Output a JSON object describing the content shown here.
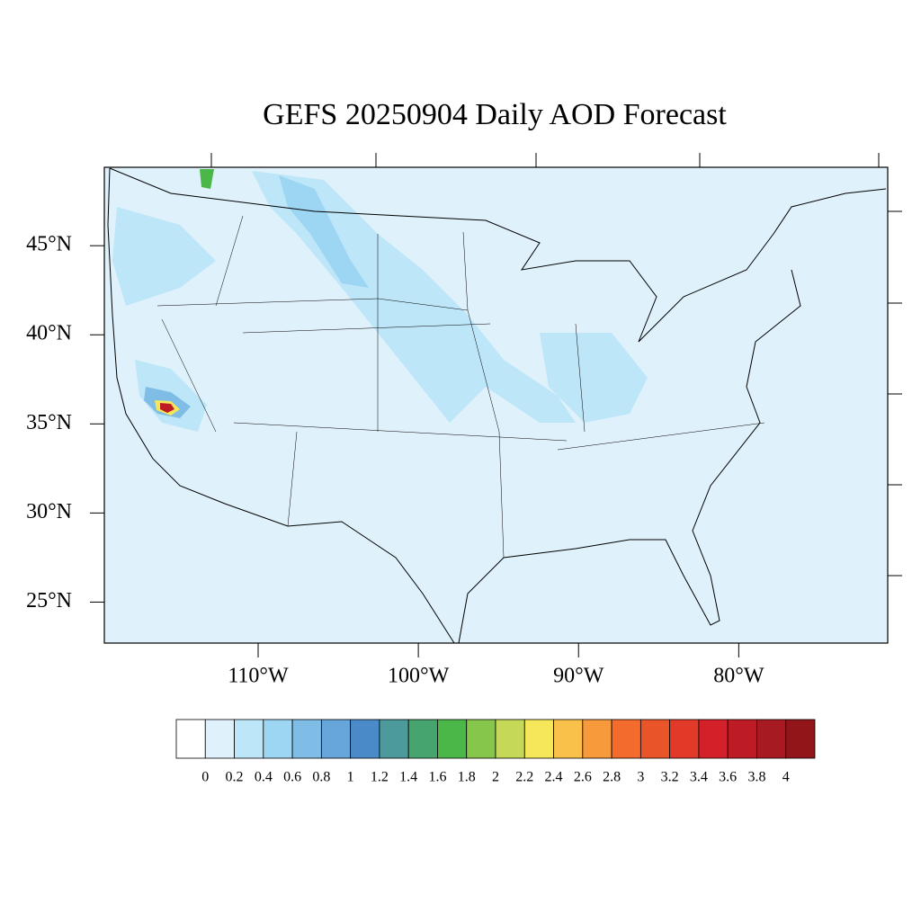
{
  "chart_data": {
    "type": "map",
    "title": "GEFS 20250904 Daily AOD Forecast",
    "xlim": [
      -119.6,
      -70.7
    ],
    "ylim": [
      22.7,
      49.4
    ],
    "xticks": [
      {
        "value": -110,
        "label": "110°W"
      },
      {
        "value": -100,
        "label": "100°W"
      },
      {
        "value": -90,
        "label": "90°W"
      },
      {
        "value": -80,
        "label": "80°W"
      }
    ],
    "yticks": [
      {
        "value": 45,
        "label": "45°N"
      },
      {
        "value": 40,
        "label": "40°N"
      },
      {
        "value": 35,
        "label": "35°N"
      },
      {
        "value": 30,
        "label": "30°N"
      },
      {
        "value": 25,
        "label": "25°N"
      }
    ],
    "colorbar": {
      "levels": [
        0,
        0.2,
        0.4,
        0.6,
        0.8,
        1,
        1.2,
        1.4,
        1.6,
        1.8,
        2,
        2.2,
        2.4,
        2.6,
        2.8,
        3,
        3.2,
        3.4,
        3.6,
        3.8,
        4
      ],
      "colors": [
        "#ffffff",
        "#dff1fb",
        "#bde6f8",
        "#9dd6f3",
        "#80bde6",
        "#67a6da",
        "#4a8ac8",
        "#4c9a9c",
        "#46a56e",
        "#4bb748",
        "#86c64a",
        "#c5d857",
        "#f6e65a",
        "#f9c04a",
        "#f79a3c",
        "#f46c2d",
        "#ea5429",
        "#e23a28",
        "#d42029",
        "#be1c24",
        "#a81a21",
        "#921519"
      ]
    }
  }
}
